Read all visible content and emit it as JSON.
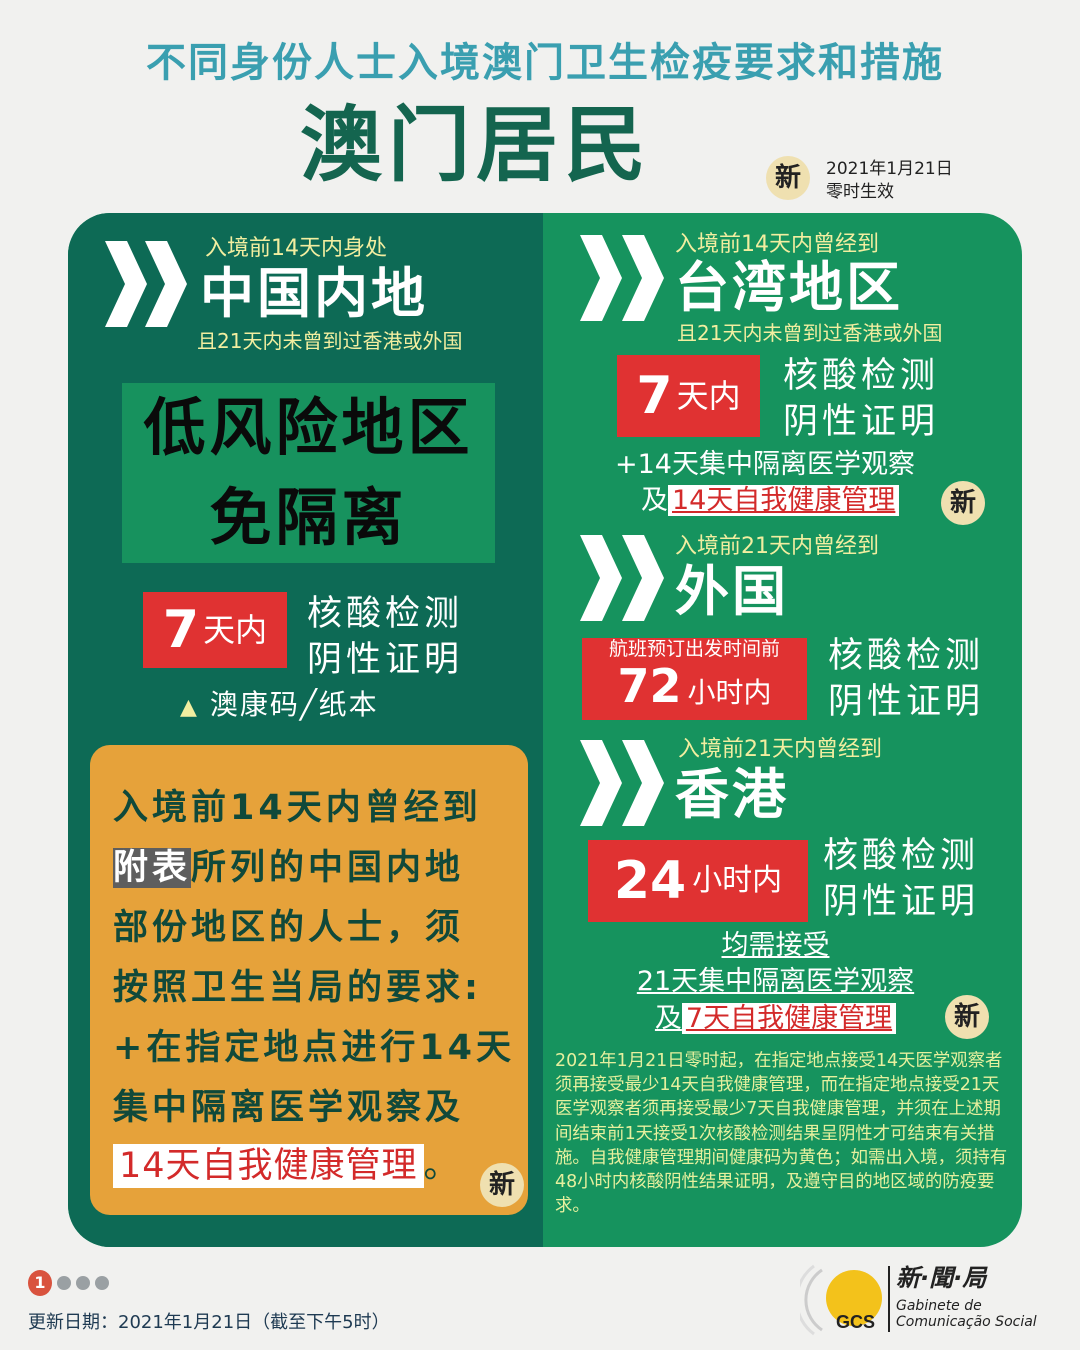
{
  "header": {
    "title": "不同身份人士入境澳门卫生检疫要求和措施",
    "subtitle": "澳门居民",
    "new_badge": "新",
    "effective_date": "2021年1月21日",
    "effective_time": "零时生效"
  },
  "left": {
    "pre": "入境前14天内身处",
    "region": "中国内地",
    "cond": "且21天内未曾到过香港或外国",
    "box_line1": "低风险地区",
    "box_line2": "免隔离",
    "test_days_num": "7",
    "test_days_unit": "天内",
    "test_line1": "核酸检测",
    "test_line2": "阴性证明",
    "code_icon": "triangle-icon",
    "code": "澳康码╱纸本",
    "orange": {
      "line1": "入境前14天内曾经到",
      "annex": "附表",
      "line2_rest": "所列的中国内地",
      "line3": "部份地区的人士，须",
      "line4": "按照卫生当局的要求:",
      "line5": "+在指定地点进行14天",
      "line6": "集中隔离医学观察及",
      "highlight": "14天自我健康管理",
      "end": "。",
      "new_badge": "新"
    }
  },
  "right": {
    "taiwan": {
      "pre": "入境前14天内曾经到",
      "region": "台湾地区",
      "cond": "且21天内未曾到过香港或外国",
      "days_num": "7",
      "days_unit": "天内",
      "test_line1": "核酸检测",
      "test_line2": "阴性证明",
      "extra1": "+14天集中隔离医学观察",
      "extra2_prefix": "及",
      "extra2_hl": "14天自我健康管理",
      "new_badge": "新"
    },
    "foreign": {
      "pre": "入境前21天内曾经到",
      "region": "外国",
      "box_small": "航班预订出发时间前",
      "box_num": "72",
      "box_unit": "小时内",
      "test_line1": "核酸检测",
      "test_line2": "阴性证明"
    },
    "hongkong": {
      "pre": "入境前21天内曾经到",
      "region": "香港",
      "box_num": "24",
      "box_unit": "小时内",
      "test_line1": "核酸检测",
      "test_line2": "阴性证明"
    },
    "common1": "均需接受",
    "common2": "21天集中隔离医学观察",
    "common3_prefix": "及",
    "common3_hl": "7天自我健康管理",
    "new_badge": "新",
    "note": "2021年1月21日零时起，在指定地点接受14天医学观察者须再接受最少14天自我健康管理，而在指定地点接受21天医学观察者须再接受最少7天自我健康管理，并须在上述期间结束前1天接受1次核酸检测结果呈阴性才可结束有关措施。自我健康管理期间健康码为黄色；如需出入境，须持有48小时内核酸阴性结果证明，及遵守目的地区域的防疫要求。"
  },
  "footer": {
    "page_current": "1",
    "pages_total": 4,
    "updated": "更新日期：2021年1月21日（截至下午5时）",
    "logo_zh": "新·聞·局",
    "logo_pt1": "Gabinete de",
    "logo_pt2": "Comunicação Social",
    "logo_mark": "GCS"
  },
  "colors": {
    "left_panel": "#0d6a55",
    "right_panel": "#16935e",
    "red": "#e03232",
    "orange": "#e6a23a",
    "title": "#3a9fb0"
  }
}
